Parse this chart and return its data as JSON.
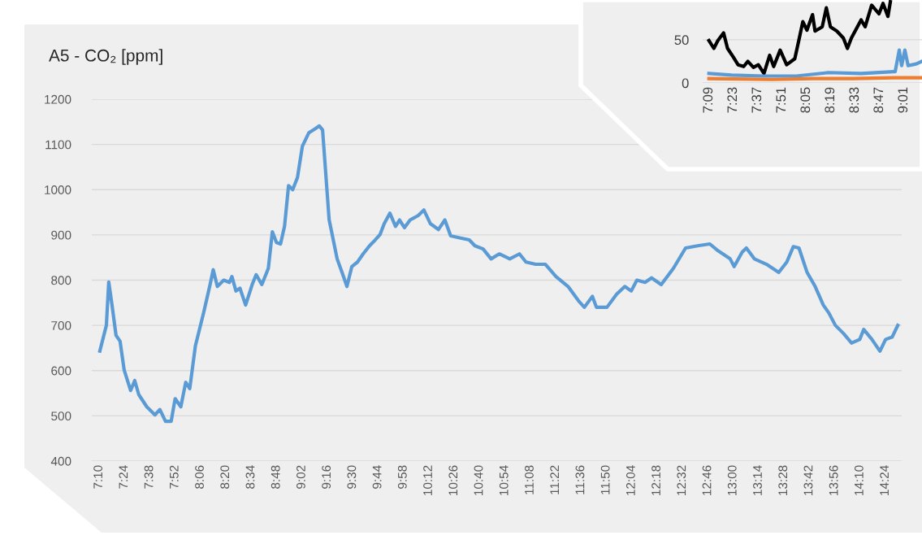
{
  "chart_data": [
    {
      "type": "line",
      "title": "A5 - CO₂ [ppm]",
      "grid": "y",
      "marker": "none",
      "line_style": "solid",
      "xlim": [
        7.1,
        14.55
      ],
      "ylim": [
        400,
        1200
      ],
      "yticks": [
        400,
        500,
        600,
        700,
        800,
        900,
        1000,
        1100,
        1200
      ],
      "xticks": [
        {
          "value": 7.1667,
          "label": "7:10"
        },
        {
          "value": 7.4,
          "label": "7:24"
        },
        {
          "value": 7.6333,
          "label": "7:38"
        },
        {
          "value": 7.8667,
          "label": "7:52"
        },
        {
          "value": 8.1,
          "label": "8:06"
        },
        {
          "value": 8.3333,
          "label": "8:20"
        },
        {
          "value": 8.5667,
          "label": "8:34"
        },
        {
          "value": 8.8,
          "label": "8:48"
        },
        {
          "value": 9.0333,
          "label": "9:02"
        },
        {
          "value": 9.2667,
          "label": "9:16"
        },
        {
          "value": 9.5,
          "label": "9:30"
        },
        {
          "value": 9.7333,
          "label": "9:44"
        },
        {
          "value": 9.9667,
          "label": "9:58"
        },
        {
          "value": 10.2,
          "label": "10:12"
        },
        {
          "value": 10.4333,
          "label": "10:26"
        },
        {
          "value": 10.6667,
          "label": "10:40"
        },
        {
          "value": 10.9,
          "label": "10:54"
        },
        {
          "value": 11.1333,
          "label": "11:08"
        },
        {
          "value": 11.3667,
          "label": "11:22"
        },
        {
          "value": 11.6,
          "label": "11:36"
        },
        {
          "value": 11.8333,
          "label": "11:50"
        },
        {
          "value": 12.0667,
          "label": "12:04"
        },
        {
          "value": 12.3,
          "label": "12:18"
        },
        {
          "value": 12.5333,
          "label": "12:32"
        },
        {
          "value": 12.7667,
          "label": "12:46"
        },
        {
          "value": 13.0,
          "label": "13:00"
        },
        {
          "value": 13.2333,
          "label": "13:14"
        },
        {
          "value": 13.4667,
          "label": "13:28"
        },
        {
          "value": 13.7,
          "label": "13:42"
        },
        {
          "value": 13.9333,
          "label": "13:56"
        },
        {
          "value": 14.1667,
          "label": "14:10"
        },
        {
          "value": 14.4,
          "label": "14:24"
        }
      ],
      "series": [
        {
          "color": "#5b9bd5",
          "x": [
            7.174,
            7.234,
            7.256,
            7.286,
            7.323,
            7.36,
            7.398,
            7.457,
            7.495,
            7.532,
            7.606,
            7.681,
            7.726,
            7.778,
            7.83,
            7.867,
            7.919,
            7.964,
            8.001,
            8.053,
            8.128,
            8.188,
            8.217,
            8.255,
            8.314,
            8.366,
            8.389,
            8.426,
            8.463,
            8.515,
            8.575,
            8.612,
            8.664,
            8.724,
            8.761,
            8.799,
            8.836,
            8.873,
            8.91,
            8.948,
            8.992,
            9.037,
            9.097,
            9.156,
            9.193,
            9.223,
            9.283,
            9.357,
            9.402,
            9.447,
            9.492,
            9.544,
            9.596,
            9.655,
            9.708,
            9.752,
            9.79,
            9.842,
            9.894,
            9.931,
            9.976,
            10.028,
            10.103,
            10.155,
            10.214,
            10.289,
            10.348,
            10.401,
            10.475,
            10.572,
            10.624,
            10.699,
            10.773,
            10.848,
            10.945,
            11.034,
            11.094,
            11.183,
            11.273,
            11.37,
            11.481,
            11.578,
            11.631,
            11.705,
            11.742,
            11.839,
            11.928,
            12.003,
            12.062,
            12.114,
            12.189,
            12.249,
            12.338,
            12.45,
            12.562,
            12.674,
            12.785,
            12.86,
            12.972,
            13.009,
            13.083,
            13.121,
            13.195,
            13.307,
            13.419,
            13.493,
            13.553,
            13.605,
            13.68,
            13.754,
            13.829,
            13.881,
            13.94,
            14.015,
            14.089,
            14.164,
            14.201,
            14.276,
            14.35,
            14.402,
            14.462,
            14.514
          ],
          "values": [
            643,
            700,
            796,
            745,
            678,
            665,
            601,
            556,
            578,
            547,
            520,
            502,
            514,
            488,
            488,
            538,
            520,
            574,
            560,
            655,
            727,
            790,
            823,
            786,
            800,
            795,
            808,
            776,
            782,
            745,
            790,
            812,
            790,
            826,
            907,
            883,
            880,
            919,
            1009,
            1000,
            1027,
            1096,
            1126,
            1135,
            1141,
            1132,
            934,
            847,
            817,
            786,
            830,
            840,
            858,
            876,
            889,
            901,
            925,
            948,
            919,
            933,
            916,
            933,
            943,
            955,
            925,
            912,
            933,
            898,
            894,
            889,
            876,
            869,
            847,
            858,
            847,
            858,
            840,
            835,
            835,
            808,
            786,
            754,
            740,
            764,
            740,
            740,
            769,
            786,
            776,
            800,
            795,
            805,
            790,
            826,
            871,
            876,
            880,
            865,
            847,
            830,
            862,
            871,
            847,
            835,
            817,
            840,
            874,
            871,
            817,
            786,
            745,
            727,
            700,
            682,
            661,
            669,
            691,
            669,
            643,
            669,
            674,
            700
          ]
        }
      ]
    },
    {
      "type": "line",
      "grid": "y",
      "marker": "none",
      "line_style": "solid",
      "xlim": [
        7.09,
        9.19
      ],
      "ylim": [
        0,
        96
      ],
      "yticks": [
        0,
        50
      ],
      "xticks": [
        {
          "value": 7.15,
          "label": "7:09"
        },
        {
          "value": 7.3833,
          "label": "7:23"
        },
        {
          "value": 7.6167,
          "label": "7:37"
        },
        {
          "value": 7.85,
          "label": "7:51"
        },
        {
          "value": 8.0833,
          "label": "8:05"
        },
        {
          "value": 8.3167,
          "label": "8:19"
        },
        {
          "value": 8.55,
          "label": "8:33"
        },
        {
          "value": 8.7833,
          "label": "8:47"
        },
        {
          "value": 9.0167,
          "label": "9:01"
        }
      ],
      "series": [
        {
          "color": "#000000",
          "x": [
            7.15,
            7.197,
            7.235,
            7.29,
            7.328,
            7.383,
            7.429,
            7.483,
            7.522,
            7.576,
            7.623,
            7.677,
            7.731,
            7.77,
            7.832,
            7.894,
            7.972,
            8.01,
            8.049,
            8.088,
            8.142,
            8.166,
            8.235,
            8.274,
            8.313,
            8.375,
            8.437,
            8.476,
            8.514,
            8.607,
            8.646,
            8.708,
            8.778,
            8.817,
            8.864,
            8.887
          ],
          "values": [
            49,
            40,
            49,
            58,
            40,
            30,
            21,
            19,
            25,
            18,
            21,
            11,
            32,
            19,
            38,
            21,
            28,
            49,
            71,
            61,
            79,
            60,
            65,
            87,
            65,
            60,
            52,
            40,
            52,
            73,
            65,
            90,
            80,
            92,
            77,
            94
          ]
        },
        {
          "color": "#5b9bd5",
          "x": [
            7.15,
            7.367,
            7.677,
            7.987,
            8.297,
            8.607,
            8.917,
            8.933,
            8.972,
            8.995,
            9.026,
            9.057,
            9.134,
            9.189
          ],
          "values": [
            11,
            9,
            8,
            8,
            12,
            11,
            13,
            13,
            38,
            20,
            38,
            20,
            22,
            25
          ]
        },
        {
          "color": "#ed7d31",
          "x": [
            7.15,
            7.755,
            8.142,
            8.53,
            8.917,
            9.189
          ],
          "values": [
            5,
            4,
            5,
            5,
            6,
            6
          ]
        }
      ]
    }
  ]
}
